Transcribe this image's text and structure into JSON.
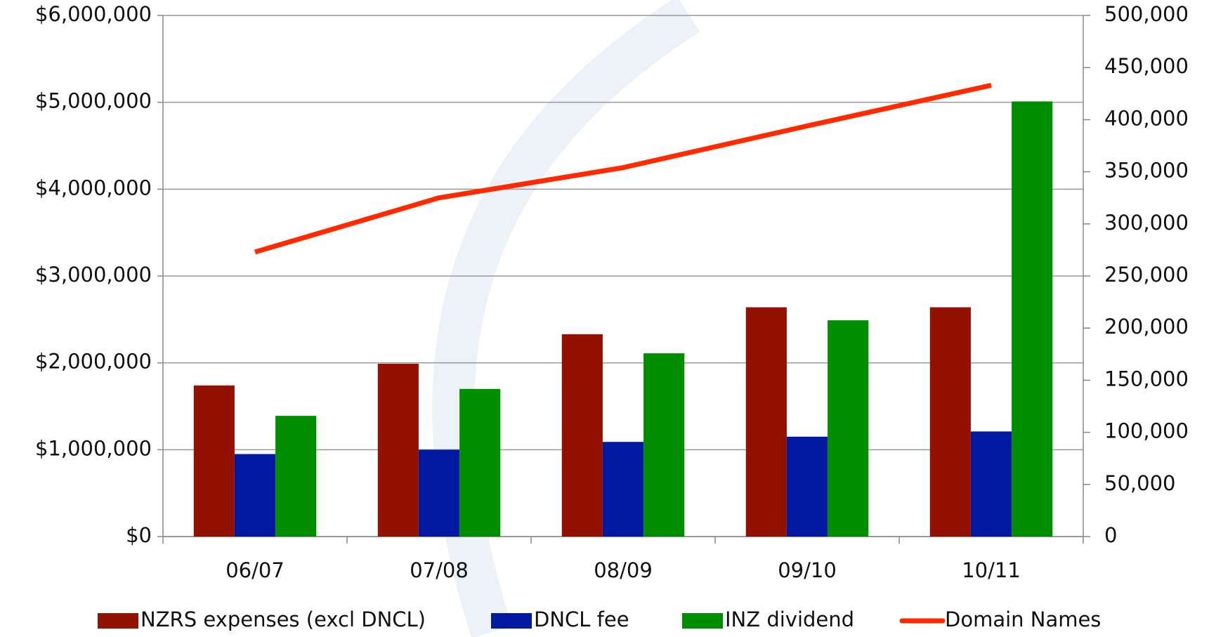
{
  "chart_data": {
    "type": "bar",
    "categories": [
      "06/07",
      "07/08",
      "08/09",
      "09/10",
      "10/11"
    ],
    "series": [
      {
        "name": "NZRS expenses (excl DNCL)",
        "color": "#931100",
        "values": [
          1740000,
          1990000,
          2330000,
          2640000,
          2640000
        ]
      },
      {
        "name": "DNCL fee",
        "color": "#0019a0",
        "values": [
          950000,
          1000000,
          1090000,
          1150000,
          1210000
        ]
      },
      {
        "name": "INZ dividend",
        "color": "#008e00",
        "values": [
          1390000,
          1700000,
          2110000,
          2490000,
          5010000
        ]
      },
      {
        "name": "Domain Names",
        "color": "#ff2a00",
        "type": "line",
        "axis": "y2",
        "values": [
          273000,
          325000,
          354000,
          394000,
          433000
        ]
      }
    ],
    "ylim": [
      0,
      6000000
    ],
    "yticks": [
      {
        "value": 0,
        "label": "$0"
      },
      {
        "value": 1000000,
        "label": "$1,000,000"
      },
      {
        "value": 2000000,
        "label": "$2,000,000"
      },
      {
        "value": 3000000,
        "label": "$3,000,000"
      },
      {
        "value": 4000000,
        "label": "$4,000,000"
      },
      {
        "value": 5000000,
        "label": "$5,000,000"
      },
      {
        "value": 6000000,
        "label": "$6,000,000"
      }
    ],
    "y2lim": [
      0,
      500000
    ],
    "y2ticks": [
      0,
      {
        "value": 50000,
        "label": "50,000"
      },
      {
        "value": 100000,
        "label": "100,000"
      },
      {
        "value": 150000,
        "label": "150,000"
      },
      {
        "value": 200000,
        "label": "200,000"
      },
      {
        "value": 250000,
        "label": "250,000"
      },
      {
        "value": 300000,
        "label": "300,000"
      },
      {
        "value": 350000,
        "label": "350,000"
      },
      {
        "value": 400000,
        "label": "400,000"
      },
      {
        "value": 450000,
        "label": "450,000"
      },
      {
        "value": 500000,
        "label": "500,000"
      }
    ],
    "grid": true,
    "legend": "bottom"
  }
}
